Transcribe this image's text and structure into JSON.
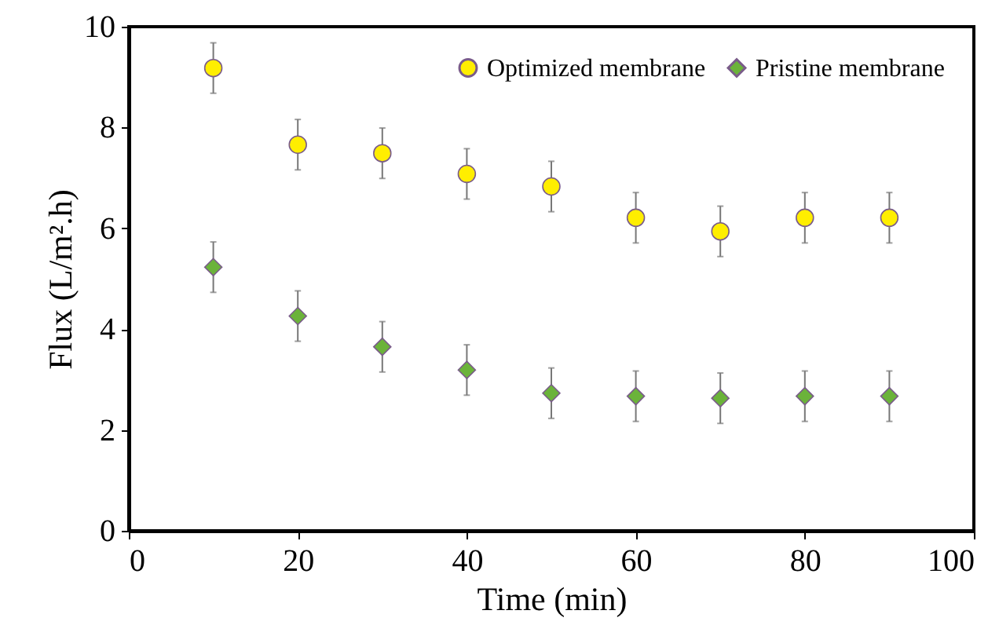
{
  "chart_data": {
    "type": "scatter",
    "xlabel": "Time (min)",
    "ylabel": "Flux (L/m².h)",
    "x": [
      10,
      20,
      30,
      40,
      50,
      60,
      70,
      80,
      90
    ],
    "series": [
      {
        "name": "Optimized membrane",
        "color": "#ffee00",
        "marker": "circle",
        "values": [
          9.18,
          7.66,
          7.49,
          7.08,
          6.83,
          6.21,
          5.94,
          6.21,
          6.21
        ],
        "errors": [
          0.5,
          0.5,
          0.5,
          0.5,
          0.5,
          0.5,
          0.5,
          0.5,
          0.5
        ]
      },
      {
        "name": "Pristine membrane",
        "color": "#6bb33a",
        "marker": "diamond",
        "values": [
          5.23,
          4.26,
          3.65,
          3.19,
          2.73,
          2.67,
          2.63,
          2.67,
          2.67
        ],
        "errors": [
          0.5,
          0.5,
          0.5,
          0.5,
          0.5,
          0.5,
          0.5,
          0.5,
          0.5
        ]
      }
    ],
    "xlim": [
      0,
      100
    ],
    "xticks": [
      0,
      20,
      40,
      60,
      80,
      100
    ],
    "ylim": [
      0,
      10
    ],
    "yticks": [
      0,
      2,
      4,
      6,
      8,
      10
    ],
    "legend": "top right",
    "grid": false
  }
}
